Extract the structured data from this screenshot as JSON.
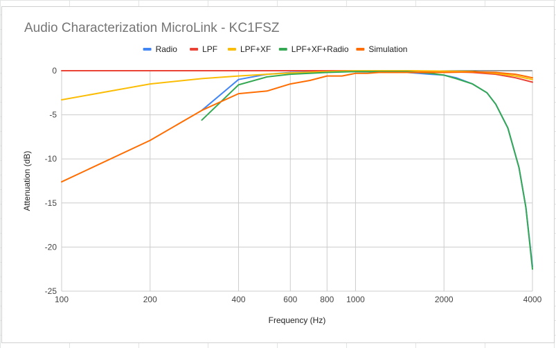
{
  "chart_data": {
    "type": "line",
    "title": "Audio Characterization MicroLink - KC1FSZ",
    "xlabel": "Frequency (Hz)",
    "ylabel": "Attenuation (dB)",
    "x_scale": "log",
    "xlim": [
      100,
      4000
    ],
    "ylim": [
      -25,
      0
    ],
    "x_ticks": [
      100,
      200,
      400,
      600,
      800,
      1000,
      2000,
      4000
    ],
    "y_ticks": [
      0,
      -5,
      -10,
      -15,
      -20,
      -25
    ],
    "grid": true,
    "legend_position": "top",
    "series": [
      {
        "name": "Radio",
        "color": "#4285f4",
        "points": [
          [
            300,
            -4.5
          ],
          [
            400,
            -1.0
          ],
          [
            500,
            -0.4
          ],
          [
            600,
            -0.2
          ],
          [
            800,
            -0.1
          ],
          [
            1000,
            -0.1
          ],
          [
            1500,
            -0.2
          ],
          [
            1800,
            -0.4
          ],
          [
            2000,
            -0.5
          ],
          [
            2200,
            -0.8
          ],
          [
            2500,
            -1.5
          ],
          [
            2800,
            -2.5
          ],
          [
            3000,
            -3.8
          ],
          [
            3300,
            -6.5
          ],
          [
            3600,
            -11.0
          ],
          [
            3800,
            -15.5
          ],
          [
            4000,
            -22.2
          ]
        ]
      },
      {
        "name": "LPF",
        "color": "#ea4335",
        "points": [
          [
            100,
            0.0
          ],
          [
            200,
            0.0
          ],
          [
            400,
            0.0
          ],
          [
            600,
            0.0
          ],
          [
            800,
            0.0
          ],
          [
            1000,
            0.0
          ],
          [
            1500,
            0.0
          ],
          [
            2000,
            -0.1
          ],
          [
            2500,
            -0.2
          ],
          [
            3000,
            -0.4
          ],
          [
            3500,
            -0.8
          ],
          [
            4000,
            -1.3
          ]
        ]
      },
      {
        "name": "LPF+XF",
        "color": "#fbbc04",
        "points": [
          [
            100,
            -3.3
          ],
          [
            200,
            -1.5
          ],
          [
            300,
            -0.9
          ],
          [
            400,
            -0.6
          ],
          [
            500,
            -0.4
          ],
          [
            600,
            -0.25
          ],
          [
            800,
            -0.1
          ],
          [
            1000,
            0.0
          ],
          [
            1500,
            0.0
          ],
          [
            2000,
            -0.05
          ],
          [
            2500,
            -0.1
          ],
          [
            3000,
            -0.3
          ],
          [
            3500,
            -0.6
          ],
          [
            4000,
            -1.0
          ]
        ]
      },
      {
        "name": "LPF+XF+Radio",
        "color": "#34a853",
        "points": [
          [
            300,
            -5.6
          ],
          [
            400,
            -1.6
          ],
          [
            500,
            -0.7
          ],
          [
            600,
            -0.4
          ],
          [
            800,
            -0.2
          ],
          [
            1000,
            -0.1
          ],
          [
            1500,
            -0.1
          ],
          [
            1800,
            -0.3
          ],
          [
            2000,
            -0.5
          ],
          [
            2200,
            -0.9
          ],
          [
            2500,
            -1.5
          ],
          [
            2800,
            -2.5
          ],
          [
            3000,
            -3.8
          ],
          [
            3300,
            -6.5
          ],
          [
            3600,
            -11.0
          ],
          [
            3800,
            -15.5
          ],
          [
            4000,
            -22.5
          ]
        ]
      },
      {
        "name": "Simulation",
        "color": "#ff6d01",
        "points": [
          [
            100,
            -12.6
          ],
          [
            200,
            -7.9
          ],
          [
            300,
            -4.5
          ],
          [
            400,
            -2.6
          ],
          [
            500,
            -2.3
          ],
          [
            600,
            -1.5
          ],
          [
            700,
            -1.1
          ],
          [
            800,
            -0.6
          ],
          [
            900,
            -0.6
          ],
          [
            1000,
            -0.3
          ],
          [
            1100,
            -0.3
          ],
          [
            1200,
            -0.2
          ],
          [
            1500,
            -0.2
          ],
          [
            2000,
            -0.2
          ],
          [
            2500,
            -0.15
          ],
          [
            3000,
            -0.2
          ],
          [
            3500,
            -0.4
          ],
          [
            4000,
            -0.8
          ]
        ]
      }
    ]
  }
}
